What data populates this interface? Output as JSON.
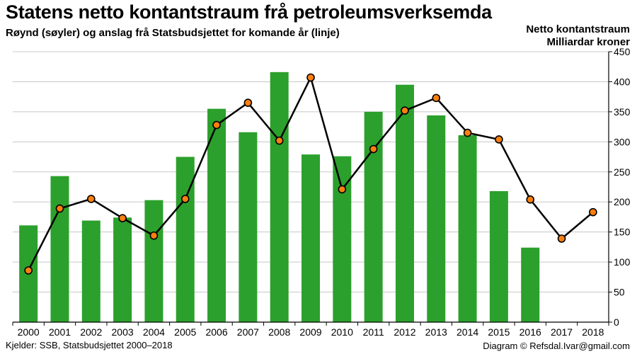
{
  "header": {
    "title": "Statens netto kontantstraum frå petroleumsverksemda",
    "subtitle": "Røynd (søyler) og anslag frå Statsbudsjettet for komande år (linje)",
    "unit_line1": "Netto kontantstraum",
    "unit_line2": "Milliardar kroner"
  },
  "footer": {
    "source": "Kjelder: SSB, Statsbudsjettet 2000–2018",
    "credit": "Diagram © Refsdal.Ivar@gmail.com"
  },
  "colors": {
    "bar": "#2ca02c",
    "line": "#000000",
    "marker_fill": "#ff7f0e",
    "marker_stroke": "#000000",
    "grid": "#c8c8c8"
  },
  "chart_data": {
    "type": "bar",
    "categories": [
      "2000",
      "2001",
      "2002",
      "2003",
      "2004",
      "2005",
      "2006",
      "2007",
      "2008",
      "2009",
      "2010",
      "2011",
      "2012",
      "2013",
      "2014",
      "2015",
      "2016",
      "2017",
      "2018"
    ],
    "series": [
      {
        "type": "bar",
        "values": [
          161,
          243,
          169,
          174,
          203,
          275,
          355,
          316,
          416,
          279,
          276,
          350,
          395,
          344,
          311,
          218,
          124,
          null,
          null
        ]
      },
      {
        "type": "line",
        "values": [
          86,
          189,
          205,
          173,
          144,
          205,
          328,
          365,
          302,
          407,
          221,
          288,
          352,
          373,
          315,
          304,
          204,
          139,
          183
        ]
      }
    ],
    "ylim": [
      0,
      450
    ],
    "yticks": [
      0,
      50,
      100,
      150,
      200,
      250,
      300,
      350,
      400,
      450
    ],
    "y_axis_side": "right",
    "grid": true
  }
}
